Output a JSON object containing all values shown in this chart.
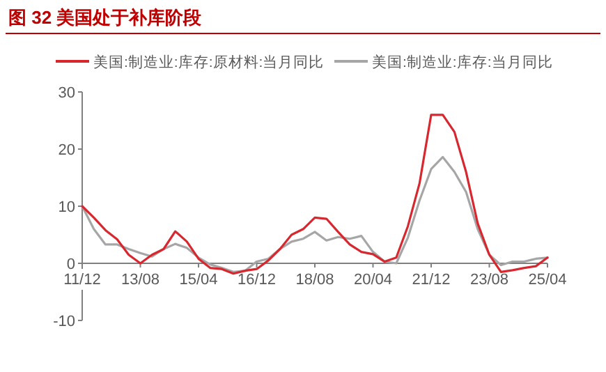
{
  "chart_data": {
    "type": "line",
    "title": "图 32 美国处于补库阶段",
    "categories": [
      "11/12",
      null,
      null,
      null,
      null,
      "13/08",
      null,
      null,
      null,
      null,
      "15/04",
      null,
      null,
      null,
      null,
      "16/12",
      null,
      null,
      null,
      null,
      "18/08",
      null,
      null,
      null,
      null,
      "20/04",
      null,
      null,
      null,
      null,
      "21/12",
      null,
      null,
      null,
      null,
      "23/08",
      null,
      null,
      null,
      null,
      "25/04"
    ],
    "series": [
      {
        "name": "美国:制造业:库存:原材料:当月同比",
        "color": "#d7282f",
        "values": [
          10,
          8,
          5.8,
          4.2,
          1.5,
          0,
          1.5,
          2.5,
          5.6,
          3.8,
          0.8,
          -0.8,
          -1,
          -1.8,
          -1.3,
          -1,
          0.5,
          2.5,
          5,
          6,
          8,
          7.8,
          5.5,
          3.3,
          2,
          1.6,
          0.3,
          1,
          6.5,
          14,
          26,
          26,
          23,
          16,
          7,
          1.5,
          -1.5,
          -1.2,
          -0.8,
          -0.5,
          1
        ]
      },
      {
        "name": "美国:制造业:库存:当月同比",
        "color": "#a6a6a6",
        "values": [
          10,
          6,
          3.3,
          3.3,
          2.5,
          1.8,
          1.2,
          2.5,
          3.4,
          2.7,
          1,
          -0.2,
          -0.8,
          -1.5,
          -1.3,
          0.3,
          0.8,
          2.5,
          3.8,
          4.3,
          5.5,
          4,
          4.6,
          4.3,
          4.8,
          2,
          0.3,
          0,
          4.5,
          11,
          16.5,
          18.6,
          16,
          12.5,
          6,
          1.5,
          -0.3,
          0.3,
          0.3,
          0.8,
          1
        ]
      }
    ],
    "ylim": [
      -10,
      30
    ],
    "yticks": [
      -10,
      0,
      10,
      20,
      30
    ],
    "grid": false,
    "legend": "top",
    "marker": "none",
    "line_style": "solid"
  }
}
